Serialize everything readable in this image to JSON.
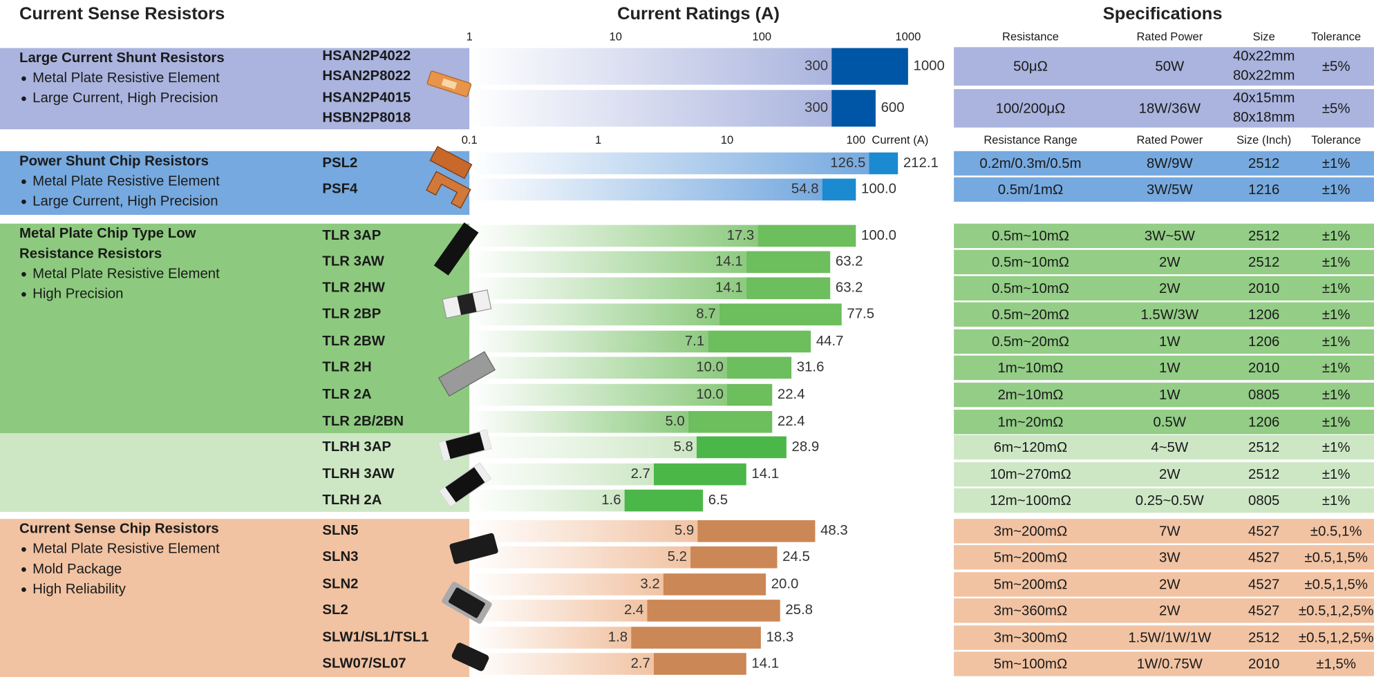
{
  "title": "Current Sense Resistors",
  "chart_data": {
    "type": "bar",
    "title": "Current Ratings (A)",
    "log_scale": true,
    "specs_title": "Specifications",
    "axes": [
      {
        "xlim": [
          1,
          1000
        ],
        "xticks": [
          1,
          10,
          100,
          1000
        ]
      },
      {
        "xlim": [
          0.1,
          1000
        ],
        "xticks": [
          0.1,
          1,
          10,
          100
        ],
        "label": "Current (A)"
      }
    ],
    "groups": [
      {
        "title_lines": [
          "Large Current Shunt Resistors"
        ],
        "bullets": [
          "Metal Plate Resistive Element",
          "Large Current, High Precision"
        ],
        "axis": 0,
        "spec_headers": [
          "Resistance",
          "Rated Power",
          "Size",
          "Tolerance"
        ],
        "panel_color": "#aab4de",
        "bar_color": "#0056a6",
        "spec_color": "#aab4de",
        "products": [
          {
            "names": [
              "HSAN2P4022",
              "HSAN2P8022"
            ],
            "values": [
              300,
              1000
            ],
            "value_labels": [
              "300",
              "1000"
            ],
            "specs": [
              "50μΩ",
              "50W",
              [
                "40x22mm",
                "80x22mm"
              ],
              "±5%"
            ]
          },
          {
            "names": [
              "HSAN2P4015",
              "HSBN2P8018"
            ],
            "values": [
              300,
              600
            ],
            "value_labels": [
              "300",
              "600"
            ],
            "specs": [
              "100/200μΩ",
              "18W/36W",
              [
                "40x15mm",
                "80x18mm"
              ],
              "±5%"
            ]
          }
        ]
      },
      {
        "title_lines": [
          "Power Shunt Chip Resistors"
        ],
        "bullets": [
          "Metal Plate Resistive Element",
          "Large Current, High Precision"
        ],
        "axis": 1,
        "spec_headers": [
          "Resistance Range",
          "Rated Power",
          "Size (Inch)",
          "Tolerance"
        ],
        "panel_color": "#76a9df",
        "bar_color": "#1b8ad0",
        "spec_color": "#76a9df",
        "products": [
          {
            "names": [
              "PSL2"
            ],
            "values": [
              126.5,
              212.1
            ],
            "value_labels": [
              "126.5",
              "212.1"
            ],
            "specs": [
              "0.2m/0.3m/0.5m",
              "8W/9W",
              "2512",
              "±1%"
            ]
          },
          {
            "names": [
              "PSF4"
            ],
            "values": [
              54.8,
              100.0
            ],
            "value_labels": [
              "54.8",
              "100.0"
            ],
            "specs": [
              "0.5m/1mΩ",
              "3W/5W",
              "1216",
              "±1%"
            ]
          }
        ]
      },
      {
        "title_lines": [
          "Metal Plate Chip Type Low",
          "Resistance Resistors"
        ],
        "bullets": [
          "Metal Plate Resistive Element",
          "High Precision"
        ],
        "axis": 1,
        "panel_color": "#8dca7f",
        "bar_color": "#6dbe5d",
        "spec_color": "#93cd86",
        "products": [
          {
            "names": [
              "TLR 3AP"
            ],
            "values": [
              17.3,
              100.0
            ],
            "value_labels": [
              "17.3",
              "100.0"
            ],
            "specs": [
              "0.5m~10mΩ",
              "3W~5W",
              "2512",
              "±1%"
            ]
          },
          {
            "names": [
              "TLR 3AW"
            ],
            "values": [
              14.1,
              63.2
            ],
            "value_labels": [
              "14.1",
              "63.2"
            ],
            "specs": [
              "0.5m~10mΩ",
              "2W",
              "2512",
              "±1%"
            ]
          },
          {
            "names": [
              "TLR 2HW"
            ],
            "values": [
              14.1,
              63.2
            ],
            "value_labels": [
              "14.1",
              "63.2"
            ],
            "specs": [
              "0.5m~10mΩ",
              "2W",
              "2010",
              "±1%"
            ]
          },
          {
            "names": [
              "TLR 2BP"
            ],
            "values": [
              8.7,
              77.5
            ],
            "value_labels": [
              "8.7",
              "77.5"
            ],
            "specs": [
              "0.5m~20mΩ",
              "1.5W/3W",
              "1206",
              "±1%"
            ]
          },
          {
            "names": [
              "TLR 2BW"
            ],
            "values": [
              7.1,
              44.7
            ],
            "value_labels": [
              "7.1",
              "44.7"
            ],
            "specs": [
              "0.5m~20mΩ",
              "1W",
              "1206",
              "±1%"
            ]
          },
          {
            "names": [
              "TLR 2H"
            ],
            "values": [
              10.0,
              31.6
            ],
            "value_labels": [
              "10.0",
              "31.6"
            ],
            "specs": [
              "1m~10mΩ",
              "1W",
              "2010",
              "±1%"
            ]
          },
          {
            "names": [
              "TLR 2A"
            ],
            "values": [
              10.0,
              22.4
            ],
            "value_labels": [
              "10.0",
              "22.4"
            ],
            "specs": [
              "2m~10mΩ",
              "1W",
              "0805",
              "±1%"
            ]
          },
          {
            "names": [
              "TLR 2B/2BN"
            ],
            "values": [
              5.0,
              22.4
            ],
            "value_labels": [
              "5.0",
              "22.4"
            ],
            "specs": [
              "1m~20mΩ",
              "0.5W",
              "1206",
              "±1%"
            ]
          }
        ]
      },
      {
        "axis": 1,
        "panel_color": "#cde7c5",
        "bar_color": "#4cb749",
        "spec_color": "#cde7c5",
        "products": [
          {
            "names": [
              "TLRH 3AP"
            ],
            "values": [
              5.8,
              28.9
            ],
            "value_labels": [
              "5.8",
              "28.9"
            ],
            "specs": [
              "6m~120mΩ",
              "4~5W",
              "2512",
              "±1%"
            ]
          },
          {
            "names": [
              "TLRH 3AW"
            ],
            "values": [
              2.7,
              14.1
            ],
            "value_labels": [
              "2.7",
              "14.1"
            ],
            "specs": [
              "10m~270mΩ",
              "2W",
              "2512",
              "±1%"
            ]
          },
          {
            "names": [
              "TLRH 2A"
            ],
            "values": [
              1.6,
              6.5
            ],
            "value_labels": [
              "1.6",
              "6.5"
            ],
            "specs": [
              "12m~100mΩ",
              "0.25~0.5W",
              "0805",
              "±1%"
            ]
          }
        ]
      },
      {
        "title_lines": [
          "Current Sense Chip Resistors"
        ],
        "bullets": [
          "Metal Plate Resistive Element",
          "Mold Package",
          "High Reliability"
        ],
        "axis": 1,
        "panel_color": "#f1c3a3",
        "bar_color": "#cc8756",
        "spec_color": "#f1c3a3",
        "products": [
          {
            "names": [
              "SLN5"
            ],
            "values": [
              5.9,
              48.3
            ],
            "value_labels": [
              "5.9",
              "48.3"
            ],
            "specs": [
              "3m~200mΩ",
              "7W",
              "4527",
              "±0.5,1%"
            ]
          },
          {
            "names": [
              "SLN3"
            ],
            "values": [
              5.2,
              24.5
            ],
            "value_labels": [
              "5.2",
              "24.5"
            ],
            "specs": [
              "5m~200mΩ",
              "3W",
              "4527",
              "±0.5,1,5%"
            ]
          },
          {
            "names": [
              "SLN2"
            ],
            "values": [
              3.2,
              20.0
            ],
            "value_labels": [
              "3.2",
              "20.0"
            ],
            "specs": [
              "5m~200mΩ",
              "2W",
              "4527",
              "±0.5,1,5%"
            ]
          },
          {
            "names": [
              "SL2"
            ],
            "values": [
              2.4,
              25.8
            ],
            "value_labels": [
              "2.4",
              "25.8"
            ],
            "specs": [
              "3m~360mΩ",
              "2W",
              "4527",
              "±0.5,1,2,5%"
            ]
          },
          {
            "names": [
              "SLW1/SL1/TSL1"
            ],
            "values": [
              1.8,
              18.3
            ],
            "value_labels": [
              "1.8",
              "18.3"
            ],
            "specs": [
              "3m~300mΩ",
              "1.5W/1W/1W",
              "2512",
              "±0.5,1,2,5%"
            ]
          },
          {
            "names": [
              "SLW07/SL07"
            ],
            "values": [
              2.7,
              14.1
            ],
            "value_labels": [
              "2.7",
              "14.1"
            ],
            "specs": [
              "5m~100mΩ",
              "1W/0.75W",
              "2010",
              "±1,5%"
            ]
          }
        ]
      }
    ]
  }
}
